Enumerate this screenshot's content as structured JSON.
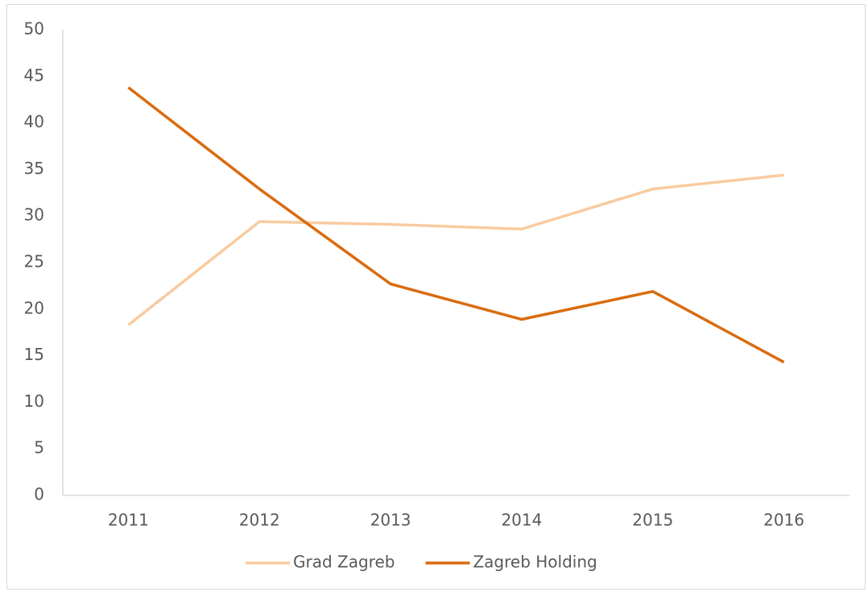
{
  "chart_data": {
    "type": "line",
    "categories": [
      "2011",
      "2012",
      "2013",
      "2014",
      "2015",
      "2016"
    ],
    "series": [
      {
        "name": "Grad Zagreb",
        "color": "#f8cba0",
        "values": [
          18.3,
          29.4,
          29.1,
          28.6,
          32.9,
          34.4
        ]
      },
      {
        "name": "Zagreb Holding",
        "color": "#d96c10",
        "values": [
          43.8,
          32.9,
          22.7,
          18.9,
          21.9,
          14.3
        ]
      }
    ],
    "ylim": [
      0,
      50
    ],
    "yticks": [
      0,
      5,
      10,
      15,
      20,
      25,
      30,
      35,
      40,
      45,
      50
    ],
    "grid": false,
    "legend": "bottom"
  }
}
